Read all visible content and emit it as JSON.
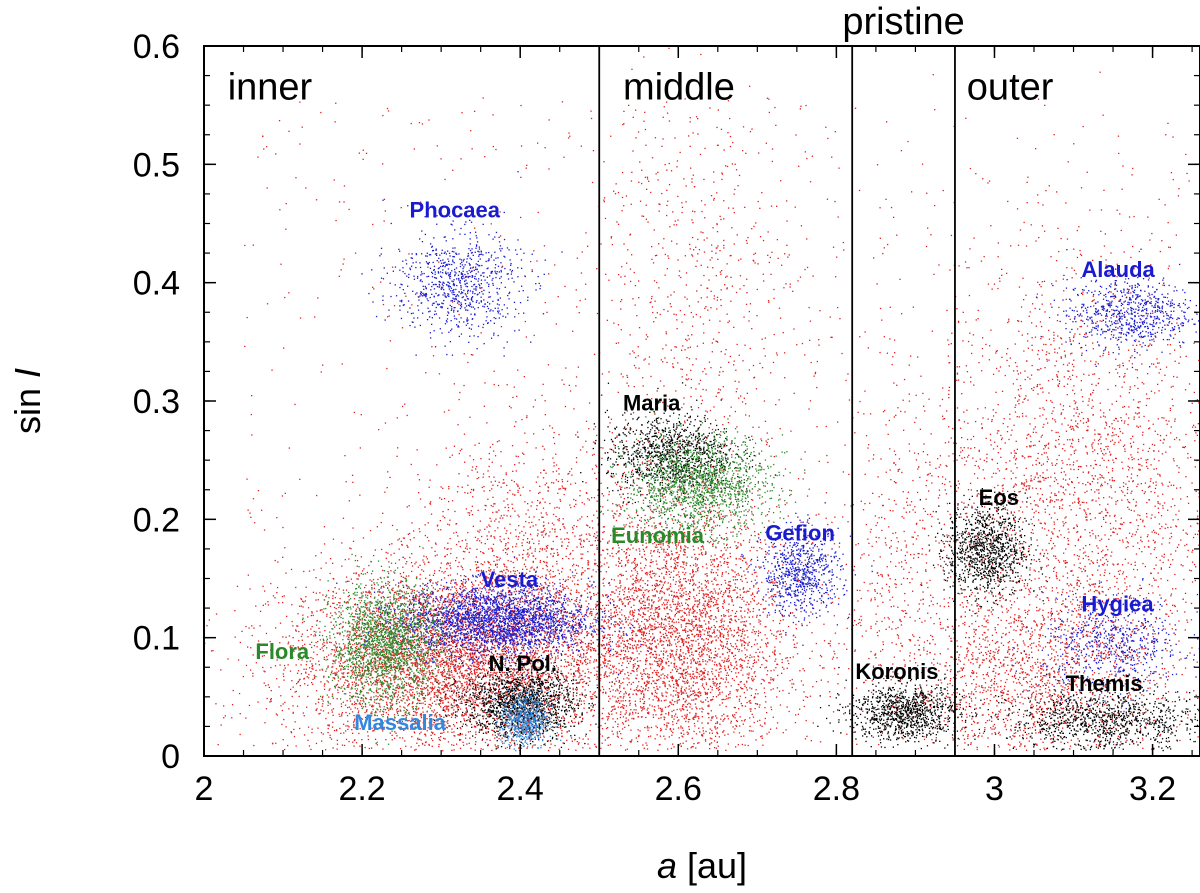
{
  "chart_data": {
    "type": "scatter",
    "title": "",
    "xlabel_italic": "a",
    "xlabel_rest": " [au]",
    "ylabel_plain": "sin ",
    "ylabel_italic": "I",
    "xlim": [
      2.0,
      3.26
    ],
    "ylim": [
      0.0,
      0.6
    ],
    "x_ticks": [
      2.0,
      2.2,
      2.4,
      2.6,
      2.8,
      3.0,
      3.2
    ],
    "x_tick_labels": [
      "2",
      "2.2",
      "2.4",
      "2.6",
      "2.8",
      "3",
      "3.2"
    ],
    "y_ticks": [
      0,
      0.1,
      0.2,
      0.3,
      0.4,
      0.5,
      0.6
    ],
    "y_tick_labels": [
      "0",
      "0.1",
      "0.2",
      "0.3",
      "0.4",
      "0.5",
      "0.6"
    ],
    "x_minor_step": 0.05,
    "y_minor_step": 0.025,
    "boundaries": [
      2.5,
      2.82,
      2.95
    ],
    "regions": [
      {
        "name": "inner",
        "x": 2.03,
        "y": 0.555
      },
      {
        "name": "middle",
        "x": 2.53,
        "y": 0.555
      },
      {
        "name": "pristine",
        "x": 2.885,
        "y": 0.61,
        "anchor": "middle"
      },
      {
        "name": "outer",
        "x": 2.965,
        "y": 0.555
      }
    ],
    "families": [
      {
        "name": "Phocaea",
        "color": "#1a1ad0",
        "label_x": 2.26,
        "label_y": 0.455,
        "clusters": [
          {
            "cx": 2.32,
            "cy": 0.4,
            "sx": 0.04,
            "sy": 0.022,
            "n": 800
          }
        ]
      },
      {
        "name": "Vesta",
        "color": "#1a1ad0",
        "label_x": 2.35,
        "label_y": 0.143,
        "clusters": [
          {
            "cx": 2.37,
            "cy": 0.115,
            "sx": 0.06,
            "sy": 0.015,
            "n": 2400
          }
        ]
      },
      {
        "name": "Flora",
        "color": "#2a8a2a",
        "label_x": 2.065,
        "label_y": 0.082,
        "clusters": [
          {
            "cx": 2.23,
            "cy": 0.095,
            "sx": 0.035,
            "sy": 0.025,
            "n": 1800
          }
        ]
      },
      {
        "name": "N. Pol.",
        "color": "#000000",
        "label_x": 2.36,
        "label_y": 0.072,
        "clusters": [
          {
            "cx": 2.4,
            "cy": 0.045,
            "sx": 0.035,
            "sy": 0.015,
            "n": 1400
          }
        ]
      },
      {
        "name": "Massalia",
        "color": "#3388dd",
        "label_x": 2.19,
        "label_y": 0.022,
        "clusters": [
          {
            "cx": 2.405,
            "cy": 0.03,
            "sx": 0.015,
            "sy": 0.012,
            "n": 600
          }
        ]
      },
      {
        "name": "Maria",
        "color": "#000000",
        "label_x": 2.53,
        "label_y": 0.292,
        "clusters": [
          {
            "cx": 2.59,
            "cy": 0.255,
            "sx": 0.04,
            "sy": 0.017,
            "n": 1000
          }
        ]
      },
      {
        "name": "Eunomia",
        "color": "#2a8a2a",
        "label_x": 2.515,
        "label_y": 0.18,
        "clusters": [
          {
            "cx": 2.625,
            "cy": 0.23,
            "sx": 0.045,
            "sy": 0.02,
            "n": 1500
          }
        ]
      },
      {
        "name": "Gefion",
        "color": "#1a1ad0",
        "label_x": 2.71,
        "label_y": 0.182,
        "clusters": [
          {
            "cx": 2.755,
            "cy": 0.155,
            "sx": 0.025,
            "sy": 0.018,
            "n": 700
          }
        ]
      },
      {
        "name": "Koronis",
        "color": "#000000",
        "label_x": 2.824,
        "label_y": 0.065,
        "clusters": [
          {
            "cx": 2.885,
            "cy": 0.037,
            "sx": 0.035,
            "sy": 0.012,
            "n": 1000
          }
        ]
      },
      {
        "name": "Eos",
        "color": "#000000",
        "label_x": 2.98,
        "label_y": 0.212,
        "clusters": [
          {
            "cx": 2.99,
            "cy": 0.175,
            "sx": 0.025,
            "sy": 0.02,
            "n": 1000
          }
        ]
      },
      {
        "name": "Alauda",
        "color": "#1a1ad0",
        "label_x": 3.11,
        "label_y": 0.405,
        "clusters": [
          {
            "cx": 3.17,
            "cy": 0.375,
            "sx": 0.04,
            "sy": 0.015,
            "n": 700
          }
        ]
      },
      {
        "name": "Hygiea",
        "color": "#1a1ad0",
        "label_x": 3.11,
        "label_y": 0.122,
        "clusters": [
          {
            "cx": 3.15,
            "cy": 0.095,
            "sx": 0.045,
            "sy": 0.02,
            "n": 600
          }
        ]
      },
      {
        "name": "Themis",
        "color": "#000000",
        "label_x": 3.09,
        "label_y": 0.055,
        "clusters": [
          {
            "cx": 3.14,
            "cy": 0.03,
            "sx": 0.06,
            "sy": 0.013,
            "n": 1000
          }
        ]
      }
    ],
    "background": {
      "color": "#e02020",
      "note": "main-belt background asteroids",
      "clusters": [
        {
          "cx": 2.3,
          "cy": 0.08,
          "sx": 0.1,
          "sy": 0.04,
          "n": 5000
        },
        {
          "cx": 2.4,
          "cy": 0.16,
          "sx": 0.07,
          "sy": 0.06,
          "n": 1200
        },
        {
          "cx": 2.6,
          "cy": 0.1,
          "sx": 0.07,
          "sy": 0.06,
          "n": 4000
        },
        {
          "cx": 2.62,
          "cy": 0.38,
          "sx": 0.07,
          "sy": 0.1,
          "n": 700
        },
        {
          "cx": 2.88,
          "cy": 0.15,
          "sx": 0.05,
          "sy": 0.08,
          "n": 500
        },
        {
          "cx": 3.1,
          "cy": 0.22,
          "sx": 0.09,
          "sy": 0.1,
          "n": 2500
        },
        {
          "cx": 3.05,
          "cy": 0.06,
          "sx": 0.08,
          "sy": 0.04,
          "n": 1500
        }
      ],
      "uniform_n": 900
    }
  }
}
